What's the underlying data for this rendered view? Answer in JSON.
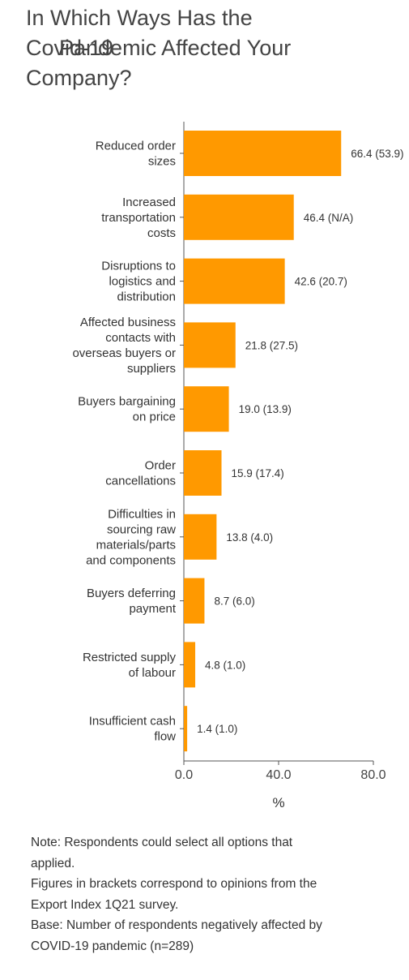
{
  "title": {
    "line1": "In Which Ways Has the",
    "line2a": "Covid-19",
    "line2b": "Pandemic Affected Your",
    "line3": "Company?"
  },
  "chart_data": {
    "type": "bar",
    "orientation": "horizontal",
    "categories": [
      [
        "Reduced order",
        "sizes"
      ],
      [
        "Increased",
        "transportation",
        "costs"
      ],
      [
        "Disruptions to",
        "logistics and",
        "distribution"
      ],
      [
        "Affected business",
        "contacts with",
        "overseas buyers or",
        "suppliers"
      ],
      [
        "Buyers bargaining",
        "on price"
      ],
      [
        "Order",
        "cancellations"
      ],
      [
        "Difficulties in",
        "sourcing raw",
        "materials/parts",
        "and components"
      ],
      [
        "Buyers deferring",
        "payment"
      ],
      [
        "Restricted supply",
        "of labour"
      ],
      [
        "Insufficient cash",
        "flow"
      ]
    ],
    "values": [
      66.4,
      46.4,
      42.6,
      21.8,
      19.0,
      15.9,
      13.8,
      8.7,
      4.8,
      1.4
    ],
    "data_labels": [
      "66.4 (53.9)",
      "46.4 (N/A)",
      "42.6 (20.7)",
      "21.8 (27.5)",
      "19.0 (13.9)",
      "15.9 (17.4)",
      "13.8 (4.0)",
      "8.7 (6.0)",
      "4.8 (1.0)",
      "1.4 (1.0)"
    ],
    "xlabel": "%",
    "xlim": [
      0,
      80
    ],
    "xticks": [
      "0.0",
      "40.0",
      "80.0"
    ],
    "bar_color": "#FF9900",
    "grid": false
  },
  "notes": [
    "Note: Respondents could select all options that",
    "applied.",
    "Figures in brackets correspond to opinions from the",
    "Export Index 1Q21 survey.",
    "Base: Number of respondents negatively affected by",
    "COVID-19 pandemic (n=289)"
  ]
}
